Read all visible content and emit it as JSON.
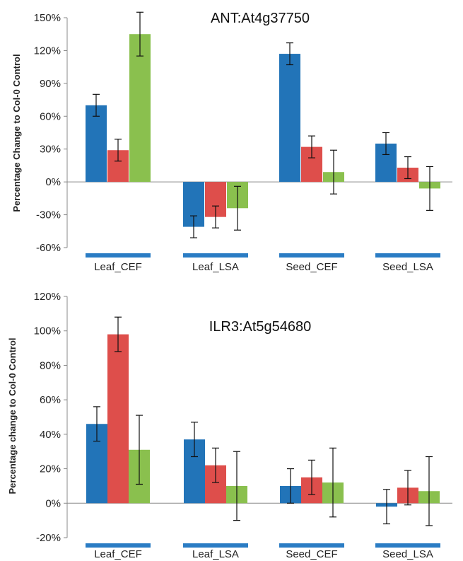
{
  "chart_data": [
    {
      "type": "bar",
      "title": "ANT:At4g37750",
      "xlabel": "",
      "ylabel": "Percentage Change to Col-0 Control",
      "ylim": [
        -60,
        150
      ],
      "yticks": [
        -60,
        -30,
        0,
        30,
        60,
        90,
        120,
        150
      ],
      "ytick_labels": [
        "-60%",
        "-30%",
        "0%",
        "30%",
        "60%",
        "90%",
        "120%",
        "150%"
      ],
      "categories": [
        "Leaf_CEF",
        "Leaf_LSA",
        "Seed_CEF",
        "Seed_LSA"
      ],
      "grid": false,
      "series": [
        {
          "color": "#2274B8",
          "values": [
            70,
            -41,
            117,
            35
          ],
          "errors": [
            10,
            10,
            10,
            10
          ]
        },
        {
          "color": "#DE4E4B",
          "values": [
            29,
            -32,
            32,
            13
          ],
          "errors": [
            10,
            10,
            10,
            10
          ]
        },
        {
          "color": "#8AC04E",
          "values": [
            135,
            -24,
            9,
            -6
          ],
          "errors": [
            20,
            20,
            20,
            20
          ]
        }
      ]
    },
    {
      "type": "bar",
      "title": "ILR3:At5g54680",
      "xlabel": "",
      "ylabel": "Percentage change to Col-0 Control",
      "ylim": [
        -20,
        120
      ],
      "yticks": [
        -20,
        0,
        20,
        40,
        60,
        80,
        100,
        120
      ],
      "ytick_labels": [
        "-20%",
        "0%",
        "20%",
        "40%",
        "60%",
        "80%",
        "100%",
        "120%"
      ],
      "categories": [
        "Leaf_CEF",
        "Leaf_LSA",
        "Seed_CEF",
        "Seed_LSA"
      ],
      "grid": false,
      "series": [
        {
          "color": "#2274B8",
          "values": [
            46,
            37,
            10,
            -2
          ],
          "errors": [
            10,
            10,
            10,
            10
          ]
        },
        {
          "color": "#DE4E4B",
          "values": [
            98,
            22,
            15,
            9
          ],
          "errors": [
            10,
            10,
            10,
            10
          ]
        },
        {
          "color": "#8AC04E",
          "values": [
            31,
            10,
            12,
            7
          ],
          "errors": [
            20,
            20,
            20,
            20
          ]
        }
      ]
    }
  ],
  "colors": {
    "category_marker": "#2A7CC4"
  }
}
